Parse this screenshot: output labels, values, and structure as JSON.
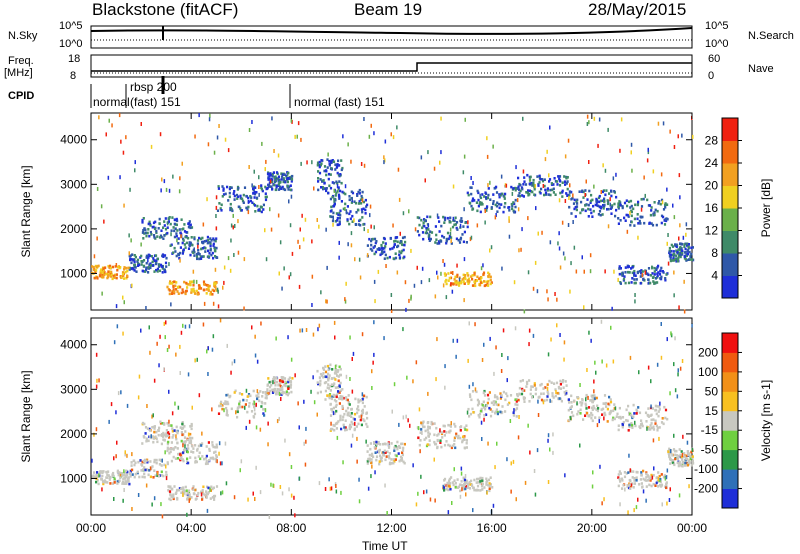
{
  "header": {
    "station": "Blackstone (fitACF)",
    "beam": "Beam 19",
    "date": "28/May/2015"
  },
  "panels": {
    "nsky_label": "N.Sky",
    "nsearch_label": "N.Search",
    "freq_label_1": "Freq.",
    "freq_label_2": "[MHz]",
    "nave_label": "Nave",
    "cpid_label": "CPID",
    "nsky_ticks": [
      "10^5",
      "10^0"
    ],
    "nsearch_ticks": [
      "10^5",
      "10^0"
    ],
    "freq_ticks": [
      "18",
      "8"
    ],
    "nave_ticks": [
      "60",
      "0"
    ]
  },
  "cpid_segments": [
    {
      "label": "normal",
      "start": 0.0,
      "end": 1.7
    },
    {
      "label": "rbsp 200",
      "start": 1.7,
      "end": 2.6
    },
    {
      "label": "(fast) 151",
      "start": 2.6,
      "end": 8.0
    },
    {
      "label": "normal (fast)  151",
      "start": 8.0,
      "end": 24.0
    }
  ],
  "chart_data": [
    {
      "type": "heatmap",
      "title": "",
      "xlabel": "Time UT",
      "ylabel": "Slant Range [km]",
      "x_ticks": [
        "00:00",
        "04:00",
        "08:00",
        "12:00",
        "16:00",
        "20:00",
        "00:00"
      ],
      "y_ticks": [
        "1000",
        "2000",
        "3000",
        "4000"
      ],
      "xlim": [
        0,
        24
      ],
      "ylim": [
        180,
        4600
      ],
      "colorbar": {
        "label": "Power [dB]",
        "ticks": [
          "4",
          "8",
          "12",
          "16",
          "20",
          "24",
          "28"
        ],
        "colors": [
          "#1f2fd8",
          "#2f58a8",
          "#3f8a68",
          "#6bb04a",
          "#f0d020",
          "#f2a020",
          "#f26a10",
          "#f02010"
        ]
      }
    },
    {
      "type": "heatmap",
      "title": "",
      "xlabel": "Time UT",
      "ylabel": "Slant Range [km]",
      "x_ticks": [
        "00:00",
        "04:00",
        "08:00",
        "12:00",
        "16:00",
        "20:00",
        "00:00"
      ],
      "y_ticks": [
        "1000",
        "2000",
        "3000",
        "4000"
      ],
      "xlim": [
        0,
        24
      ],
      "ylim": [
        180,
        4600
      ],
      "colorbar": {
        "label": "Velocity [m s-1]",
        "ticks": [
          "200",
          "100",
          "50",
          "15",
          "-15",
          "-50",
          "-100",
          "-200"
        ],
        "colors": [
          "#1f2fd8",
          "#2f70b8",
          "#2c9848",
          "#6fd040",
          "#c8c8c0",
          "#f8c020",
          "#f29018",
          "#f05a10",
          "#f01010"
        ]
      }
    }
  ]
}
